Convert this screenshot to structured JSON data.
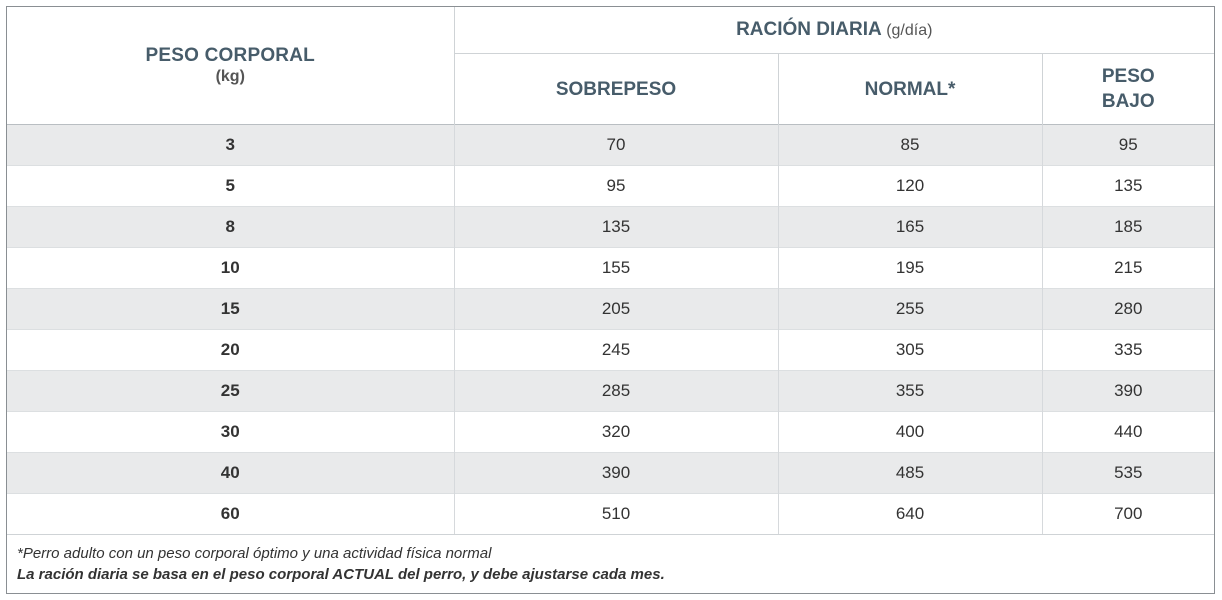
{
  "header": {
    "weight_title": "PESO CORPORAL",
    "weight_unit": "(kg)",
    "ration_title": "RACIÓN DIARIA",
    "ration_unit": "(g/día)",
    "col_overweight": "SOBREPESO",
    "col_normal": "NORMAL*",
    "col_underweight_1": "PESO",
    "col_underweight_2": "BAJO"
  },
  "rows": [
    {
      "weight": "3",
      "overweight": "70",
      "normal": "85",
      "underweight": "95"
    },
    {
      "weight": "5",
      "overweight": "95",
      "normal": "120",
      "underweight": "135"
    },
    {
      "weight": "8",
      "overweight": "135",
      "normal": "165",
      "underweight": "185"
    },
    {
      "weight": "10",
      "overweight": "155",
      "normal": "195",
      "underweight": "215"
    },
    {
      "weight": "15",
      "overweight": "205",
      "normal": "255",
      "underweight": "280"
    },
    {
      "weight": "20",
      "overweight": "245",
      "normal": "305",
      "underweight": "335"
    },
    {
      "weight": "25",
      "overweight": "285",
      "normal": "355",
      "underweight": "390"
    },
    {
      "weight": "30",
      "overweight": "320",
      "normal": "400",
      "underweight": "440"
    },
    {
      "weight": "40",
      "overweight": "390",
      "normal": "485",
      "underweight": "535"
    },
    {
      "weight": "60",
      "overweight": "510",
      "normal": "640",
      "underweight": "700"
    }
  ],
  "notes": {
    "footnote": "*Perro adulto con un peso corporal óptimo y una actividad física normal",
    "instruction": "La ración diaria se basa en el peso corporal ACTUAL del perro, y debe ajustarse cada mes."
  },
  "colors": {
    "header_text": "#475c6a",
    "shaded_row": "#e9eaeb",
    "border": "#8a8f93"
  }
}
